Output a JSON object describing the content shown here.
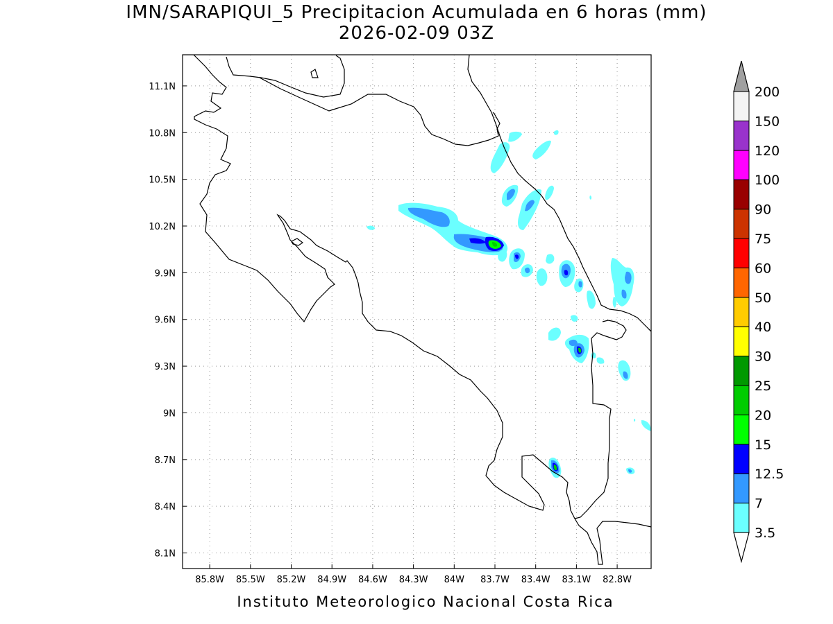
{
  "title_line1": "IMN/SARAPIQUI_5 Precipitacion Acumulada en 6 horas (mm)",
  "title_line2": "2026-02-09 03Z",
  "footer": "Instituto Meteorologico Nacional Costa Rica",
  "chart_data": {
    "type": "heatmap",
    "x_ticks": [
      "85.8W",
      "85.5W",
      "85.2W",
      "84.9W",
      "84.6W",
      "84.3W",
      "84W",
      "83.7W",
      "83.4W",
      "83.1W",
      "82.8W"
    ],
    "y_ticks": [
      "11.1N",
      "10.8N",
      "10.5N",
      "10.2N",
      "9.9N",
      "9.6N",
      "9.3N",
      "9N",
      "8.7N",
      "8.4N",
      "8.1N"
    ],
    "xlim": [
      -86.0,
      -82.55
    ],
    "ylim": [
      8.0,
      11.3
    ],
    "grid": true,
    "colorbar": {
      "levels": [
        "3.5",
        "7",
        "12.5",
        "15",
        "20",
        "25",
        "30",
        "40",
        "50",
        "60",
        "75",
        "90",
        "100",
        "120",
        "150",
        "200"
      ],
      "colors": [
        "#6bffff",
        "#3399ff",
        "#0000ff",
        "#00ff00",
        "#00cc00",
        "#009900",
        "#ffff00",
        "#ffcc00",
        "#ff6600",
        "#ff0000",
        "#cc3300",
        "#990000",
        "#ff00ff",
        "#9933cc",
        "#f4f4f4"
      ],
      "over_color": "#a0a0a0",
      "under_color": "#ffffff"
    }
  }
}
